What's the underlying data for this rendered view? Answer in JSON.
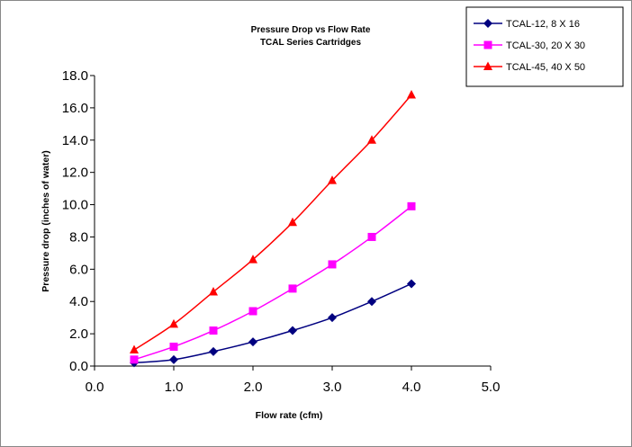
{
  "chart_data": {
    "type": "line",
    "title": "Pressure Drop vs Flow Rate",
    "subtitle": "TCAL Series Cartridges",
    "xlabel": "Flow rate (cfm)",
    "ylabel": "Pressure drop (inches of water)",
    "xlim": [
      0,
      5
    ],
    "ylim": [
      0,
      18
    ],
    "x_ticks": [
      "0.0",
      "1.0",
      "2.0",
      "3.0",
      "4.0",
      "5.0"
    ],
    "y_ticks": [
      "0.0",
      "2.0",
      "4.0",
      "6.0",
      "8.0",
      "10.0",
      "12.0",
      "14.0",
      "16.0",
      "18.0"
    ],
    "grid": false,
    "legend_position": "top-right",
    "x": [
      0.5,
      1.0,
      1.5,
      2.0,
      2.5,
      3.0,
      3.5,
      4.0
    ],
    "series": [
      {
        "name": "TCAL-12, 8 X 16",
        "color": "#000080",
        "marker": "diamond",
        "values": [
          0.2,
          0.4,
          0.9,
          1.5,
          2.2,
          3.0,
          4.0,
          5.1
        ]
      },
      {
        "name": "TCAL-30, 20 X 30",
        "color": "#ff00ff",
        "marker": "square",
        "values": [
          0.4,
          1.2,
          2.2,
          3.4,
          4.8,
          6.3,
          8.0,
          9.9
        ]
      },
      {
        "name": "TCAL-45, 40 X 50",
        "color": "#ff0000",
        "marker": "triangle",
        "values": [
          1.0,
          2.6,
          4.6,
          6.6,
          8.9,
          11.5,
          14.0,
          16.8
        ]
      }
    ]
  }
}
